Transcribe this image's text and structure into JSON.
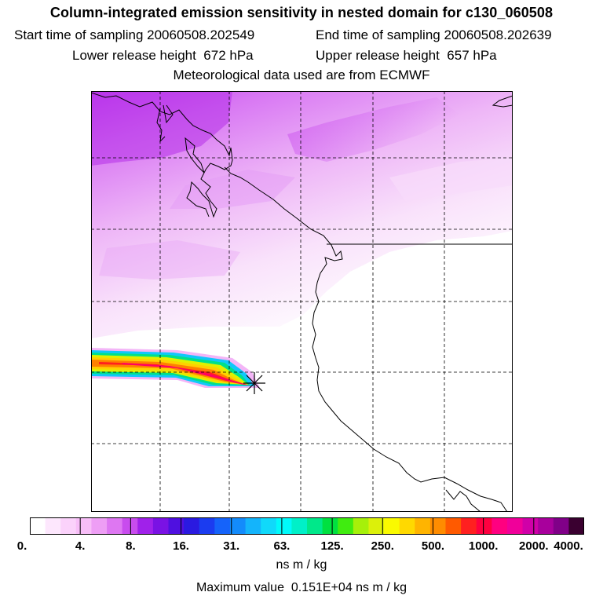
{
  "header": {
    "title": "Column-integrated emission sensitivity in nested domain for c130_060508",
    "start_label": "Start time of sampling",
    "start_value": "20060508.202549",
    "end_label": "End time of sampling",
    "end_value": "20060508.202639",
    "lower_label": "Lower release height",
    "lower_value": "672 hPa",
    "upper_label": "Upper release height",
    "upper_value": "657 hPa",
    "met_note": "Meteorological data used are from ECMWF"
  },
  "colorbar": {
    "colors": [
      "#ffffff",
      "#fde7fd",
      "#fbd2fb",
      "#f8bef8",
      "#ee9ef5",
      "#de77f2",
      "#c84cee",
      "#a021ea",
      "#7a12e4",
      "#4f10e0",
      "#2a1ae0",
      "#1b3cf0",
      "#1563fa",
      "#138bfb",
      "#14b4fb",
      "#10d9fa",
      "#00fafa",
      "#00f0c8",
      "#00e88a",
      "#00e040",
      "#40ec10",
      "#a6f00a",
      "#dcf00a",
      "#fafa00",
      "#ffd900",
      "#ffb400",
      "#ff8c00",
      "#ff5a00",
      "#ff2020",
      "#ff0040",
      "#ff0080",
      "#f0009a",
      "#d000a8",
      "#a8009c",
      "#800088",
      "#3a0030"
    ],
    "tick_labels": [
      "0.",
      "4.",
      "8.",
      "16.",
      "31.",
      "63.",
      "125.",
      "250.",
      "500.",
      "1000.",
      "2000.",
      "4000."
    ],
    "units": "ns m / kg"
  },
  "footer": {
    "max_label": "Maximum value",
    "max_value": "0.151E+04 ns m / kg"
  },
  "map": {
    "release_marker": "release-point-star-icon",
    "plume_colors": [
      "#ff0066",
      "#ff2020",
      "#ff8000",
      "#ffd000",
      "#e0f000",
      "#00e08a",
      "#10c8fa",
      "#c84cee",
      "#f3b5f7"
    ]
  }
}
